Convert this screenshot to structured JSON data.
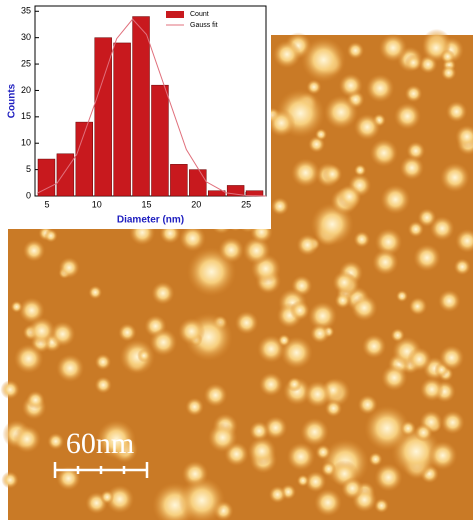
{
  "chart_data": {
    "type": "histogram",
    "x_label": "Diameter (nm)",
    "y_label": "Counts",
    "bins": [
      4,
      5.9,
      7.8,
      9.7,
      11.6,
      13.5,
      15.4,
      17.3,
      19.2,
      21.1,
      23,
      24.9,
      26.8
    ],
    "series": [
      {
        "name": "Count",
        "type": "histogram",
        "color": "#c8191e",
        "values": [
          7,
          8,
          14,
          30,
          29,
          34,
          21,
          6,
          5,
          1,
          2,
          1
        ]
      },
      {
        "name": "Gauss fit",
        "type": "line",
        "color": "#e0707c",
        "x": [
          4,
          6,
          8,
          10,
          12,
          13.6,
          15,
          17,
          19,
          21,
          23,
          25,
          27
        ],
        "values": [
          0.5,
          2.4,
          7.9,
          18.5,
          29.8,
          33.5,
          30.6,
          19.7,
          8.8,
          2.7,
          0.6,
          0.1,
          0
        ]
      }
    ],
    "xlim": [
      3.8,
      27
    ],
    "xticks": [
      5,
      10,
      15,
      20,
      25
    ],
    "ylim": [
      0,
      36
    ],
    "yticks": [
      0,
      5,
      10,
      15,
      20,
      25,
      30,
      35
    ],
    "legend": "upper right"
  },
  "scale_bar": {
    "label": "60nm"
  }
}
